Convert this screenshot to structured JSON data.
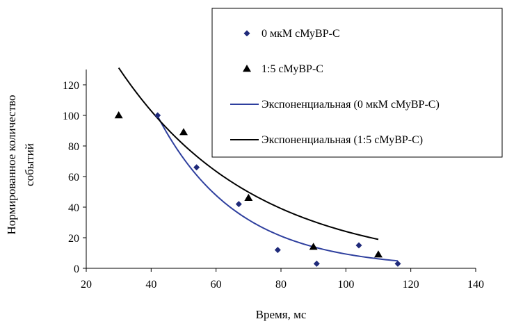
{
  "chart_data": {
    "type": "scatter",
    "xlabel": "Время, мс",
    "ylabel_lines": [
      "Нормированное количество",
      "событий"
    ],
    "xlim": [
      20,
      140
    ],
    "ylim": [
      0,
      130
    ],
    "x_ticks": [
      20,
      40,
      60,
      80,
      100,
      120,
      140
    ],
    "y_ticks": [
      0,
      20,
      40,
      60,
      80,
      100,
      120
    ],
    "grid": false,
    "legend_position": "top-right",
    "series": [
      {
        "name": "0 мкМ сМуВР-С",
        "marker": "diamond",
        "color": "#1f2a7a",
        "points": [
          [
            42,
            100
          ],
          [
            54,
            66
          ],
          [
            67,
            42
          ],
          [
            79,
            12
          ],
          [
            91,
            3
          ],
          [
            104,
            15
          ],
          [
            116,
            3
          ]
        ]
      },
      {
        "name": "1:5 сМуВР-С",
        "marker": "triangle",
        "color": "#000000",
        "points": [
          [
            30,
            100
          ],
          [
            50,
            89
          ],
          [
            70,
            46
          ],
          [
            90,
            14
          ],
          [
            110,
            9
          ]
        ]
      }
    ],
    "trendlines": [
      {
        "name": "Экспоненциальная  (0 мкМ сМуВР-С)",
        "type": "exponential",
        "color": "#2e3f9e",
        "a": 552,
        "b": 0.0408,
        "x_range": [
          42,
          116
        ]
      },
      {
        "name": "Экспоненциальная  (1:5 сМуВР-С)",
        "type": "exponential",
        "color": "#000000",
        "a": 271,
        "b": 0.0242,
        "x_range": [
          30,
          110
        ]
      }
    ]
  }
}
